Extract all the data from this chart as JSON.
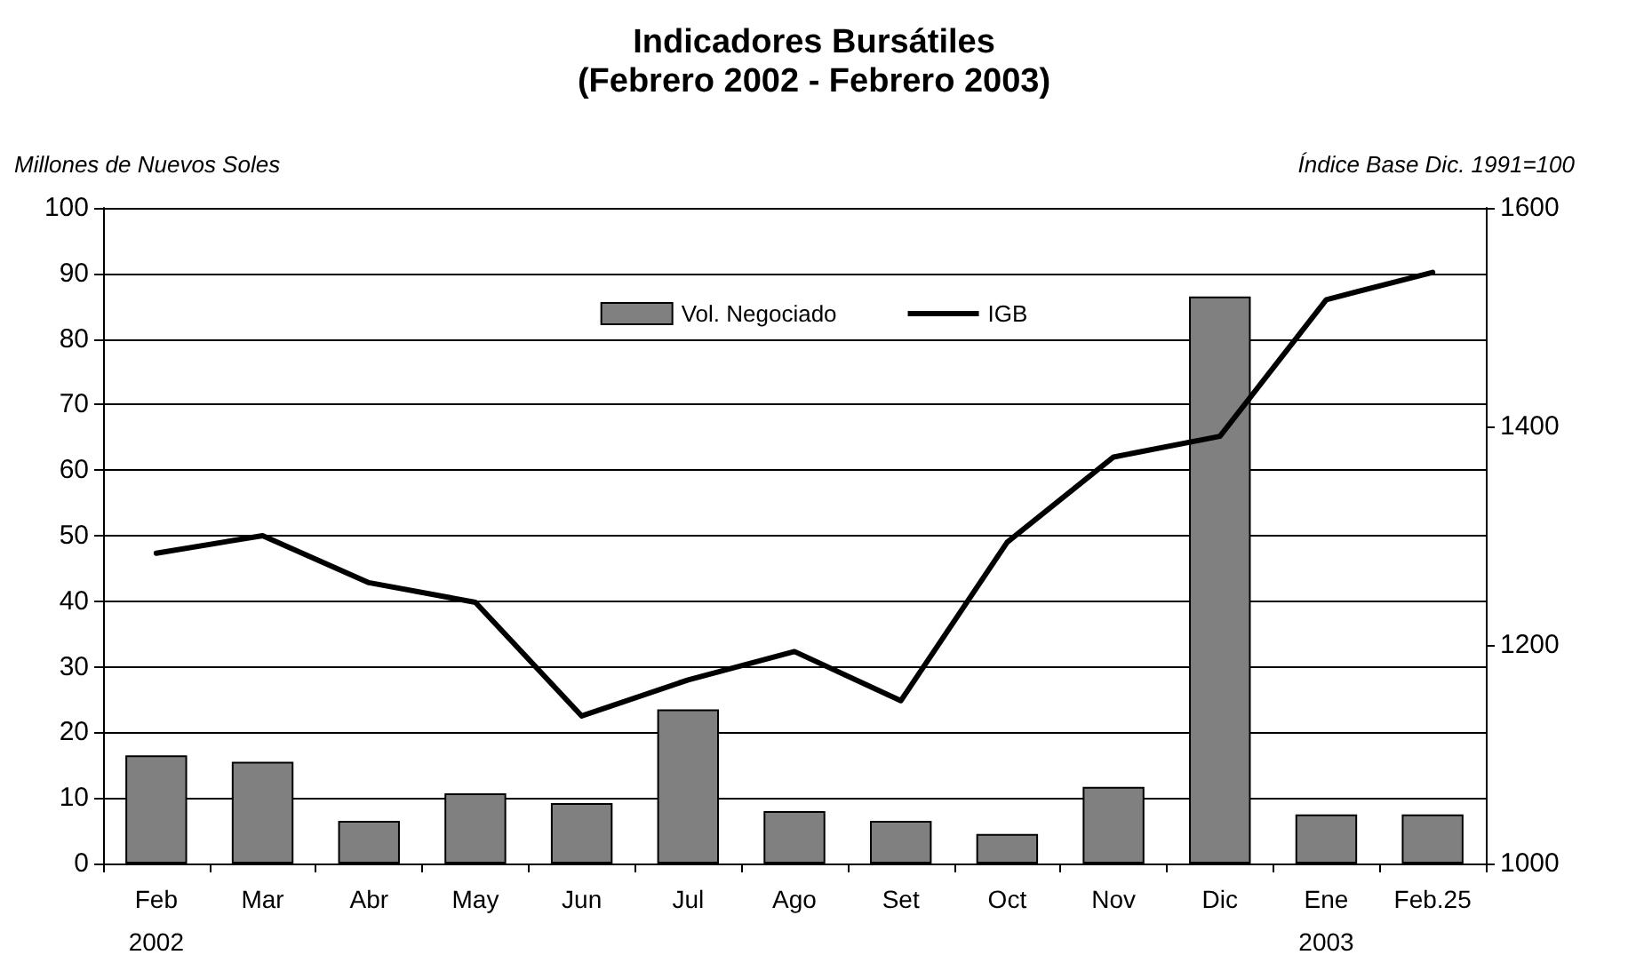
{
  "chart_data": {
    "type": "bar",
    "title": "Indicadores Bursátiles\n(Febrero 2002 - Febrero 2003)",
    "ylabel": "Millones de Nuevos Soles",
    "y2label": "Índice Base Dic. 1991=100",
    "categories": [
      "Feb\n2002",
      "Mar",
      "Abr",
      "May",
      "Jun",
      "Jul",
      "Ago",
      "Set",
      "Oct",
      "Nov",
      "Dic",
      "Ene\n2003",
      "Feb.25"
    ],
    "series": [
      {
        "name": "Vol. Negociado",
        "color": "#808080",
        "values": [
          16.5,
          15.5,
          6.5,
          10.7,
          9.2,
          23.5,
          8,
          6.5,
          4.5,
          11.7,
          86.5,
          7.5,
          7.5
        ]
      },
      {
        "name": "IGB",
        "type": "line",
        "axis": "y2",
        "color": "#000000",
        "marker": "none",
        "line_style": "solid",
        "values": [
          1284,
          1300,
          1257,
          1239,
          1135,
          1168,
          1194,
          1149,
          1294,
          1372,
          1391,
          1516,
          1541
        ]
      }
    ],
    "ylim": [
      0,
      100
    ],
    "yticks": [
      0,
      10,
      20,
      30,
      40,
      50,
      60,
      70,
      80,
      90,
      100
    ],
    "y2lim": [
      1000,
      1600
    ],
    "y2ticks": [
      1000,
      1200,
      1400,
      1600
    ],
    "grid": "y",
    "legend": "top"
  }
}
